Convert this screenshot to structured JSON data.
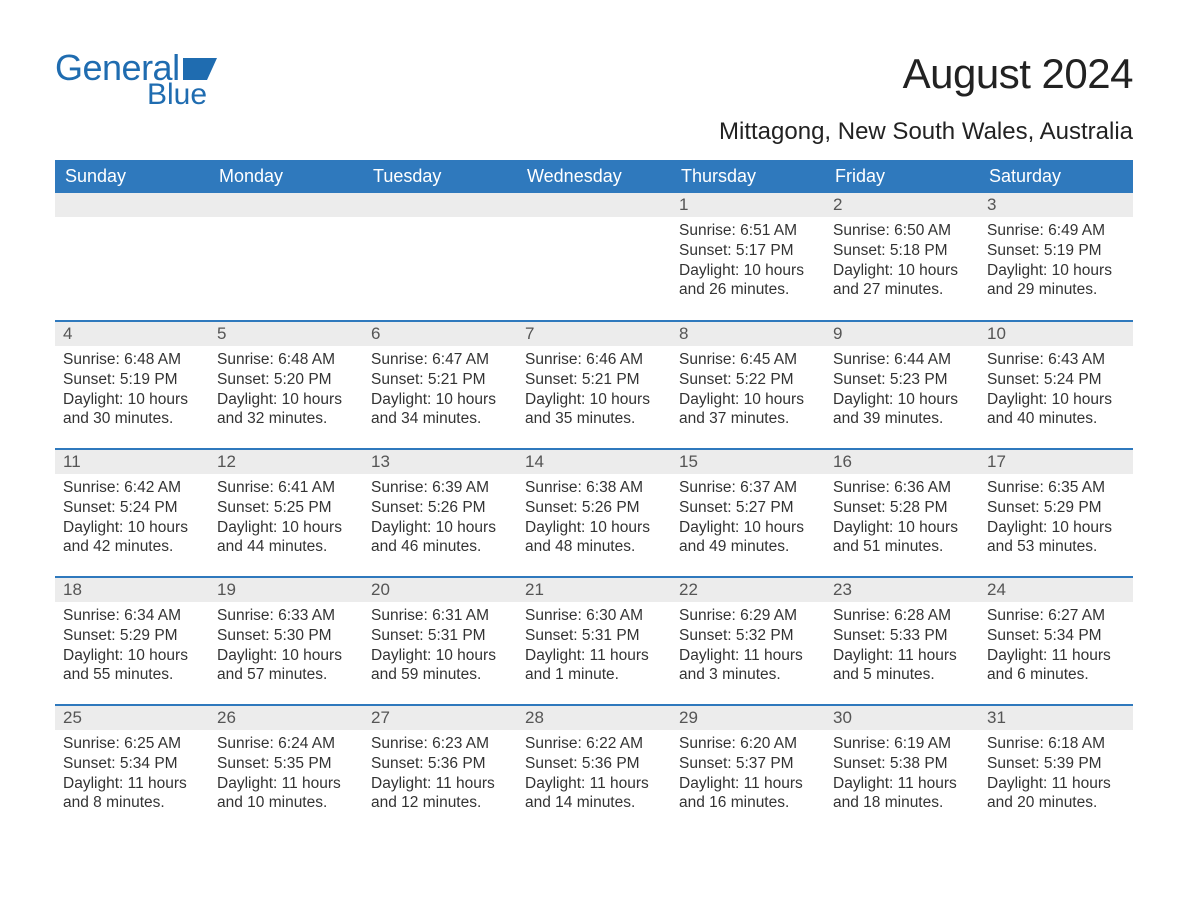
{
  "logo": {
    "word1": "General",
    "word2": "Blue"
  },
  "title": "August 2024",
  "location": "Mittagong, New South Wales, Australia",
  "colors": {
    "header_bg": "#2f79bd",
    "header_text": "#ffffff",
    "row_sep": "#2f79bd",
    "daynum_bg": "#ececec",
    "logo_color": "#1f6cb0",
    "body_text": "#333333",
    "page_bg": "#ffffff"
  },
  "weekdays": [
    "Sunday",
    "Monday",
    "Tuesday",
    "Wednesday",
    "Thursday",
    "Friday",
    "Saturday"
  ],
  "layout": {
    "first_weekday_index": 4,
    "days_in_month": 31,
    "rows": 5,
    "cols": 7
  },
  "days": {
    "1": {
      "sunrise": "6:51 AM",
      "sunset": "5:17 PM",
      "daylight": "10 hours and 26 minutes."
    },
    "2": {
      "sunrise": "6:50 AM",
      "sunset": "5:18 PM",
      "daylight": "10 hours and 27 minutes."
    },
    "3": {
      "sunrise": "6:49 AM",
      "sunset": "5:19 PM",
      "daylight": "10 hours and 29 minutes."
    },
    "4": {
      "sunrise": "6:48 AM",
      "sunset": "5:19 PM",
      "daylight": "10 hours and 30 minutes."
    },
    "5": {
      "sunrise": "6:48 AM",
      "sunset": "5:20 PM",
      "daylight": "10 hours and 32 minutes."
    },
    "6": {
      "sunrise": "6:47 AM",
      "sunset": "5:21 PM",
      "daylight": "10 hours and 34 minutes."
    },
    "7": {
      "sunrise": "6:46 AM",
      "sunset": "5:21 PM",
      "daylight": "10 hours and 35 minutes."
    },
    "8": {
      "sunrise": "6:45 AM",
      "sunset": "5:22 PM",
      "daylight": "10 hours and 37 minutes."
    },
    "9": {
      "sunrise": "6:44 AM",
      "sunset": "5:23 PM",
      "daylight": "10 hours and 39 minutes."
    },
    "10": {
      "sunrise": "6:43 AM",
      "sunset": "5:24 PM",
      "daylight": "10 hours and 40 minutes."
    },
    "11": {
      "sunrise": "6:42 AM",
      "sunset": "5:24 PM",
      "daylight": "10 hours and 42 minutes."
    },
    "12": {
      "sunrise": "6:41 AM",
      "sunset": "5:25 PM",
      "daylight": "10 hours and 44 minutes."
    },
    "13": {
      "sunrise": "6:39 AM",
      "sunset": "5:26 PM",
      "daylight": "10 hours and 46 minutes."
    },
    "14": {
      "sunrise": "6:38 AM",
      "sunset": "5:26 PM",
      "daylight": "10 hours and 48 minutes."
    },
    "15": {
      "sunrise": "6:37 AM",
      "sunset": "5:27 PM",
      "daylight": "10 hours and 49 minutes."
    },
    "16": {
      "sunrise": "6:36 AM",
      "sunset": "5:28 PM",
      "daylight": "10 hours and 51 minutes."
    },
    "17": {
      "sunrise": "6:35 AM",
      "sunset": "5:29 PM",
      "daylight": "10 hours and 53 minutes."
    },
    "18": {
      "sunrise": "6:34 AM",
      "sunset": "5:29 PM",
      "daylight": "10 hours and 55 minutes."
    },
    "19": {
      "sunrise": "6:33 AM",
      "sunset": "5:30 PM",
      "daylight": "10 hours and 57 minutes."
    },
    "20": {
      "sunrise": "6:31 AM",
      "sunset": "5:31 PM",
      "daylight": "10 hours and 59 minutes."
    },
    "21": {
      "sunrise": "6:30 AM",
      "sunset": "5:31 PM",
      "daylight": "11 hours and 1 minute."
    },
    "22": {
      "sunrise": "6:29 AM",
      "sunset": "5:32 PM",
      "daylight": "11 hours and 3 minutes."
    },
    "23": {
      "sunrise": "6:28 AM",
      "sunset": "5:33 PM",
      "daylight": "11 hours and 5 minutes."
    },
    "24": {
      "sunrise": "6:27 AM",
      "sunset": "5:34 PM",
      "daylight": "11 hours and 6 minutes."
    },
    "25": {
      "sunrise": "6:25 AM",
      "sunset": "5:34 PM",
      "daylight": "11 hours and 8 minutes."
    },
    "26": {
      "sunrise": "6:24 AM",
      "sunset": "5:35 PM",
      "daylight": "11 hours and 10 minutes."
    },
    "27": {
      "sunrise": "6:23 AM",
      "sunset": "5:36 PM",
      "daylight": "11 hours and 12 minutes."
    },
    "28": {
      "sunrise": "6:22 AM",
      "sunset": "5:36 PM",
      "daylight": "11 hours and 14 minutes."
    },
    "29": {
      "sunrise": "6:20 AM",
      "sunset": "5:37 PM",
      "daylight": "11 hours and 16 minutes."
    },
    "30": {
      "sunrise": "6:19 AM",
      "sunset": "5:38 PM",
      "daylight": "11 hours and 18 minutes."
    },
    "31": {
      "sunrise": "6:18 AM",
      "sunset": "5:39 PM",
      "daylight": "11 hours and 20 minutes."
    }
  },
  "labels": {
    "sunrise": "Sunrise: ",
    "sunset": "Sunset: ",
    "daylight": "Daylight: "
  }
}
